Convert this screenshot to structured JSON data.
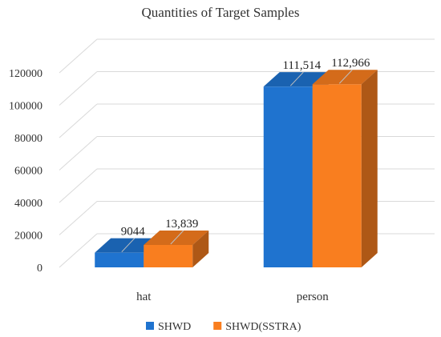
{
  "chart_data": {
    "type": "bar",
    "title": "Quantities of Target Samples",
    "xlabel": "",
    "ylabel": "",
    "categories": [
      "hat",
      "person"
    ],
    "series": [
      {
        "name": "SHWD",
        "values": [
          9044,
          111514
        ],
        "labels": [
          "9044",
          "111,514"
        ],
        "color": "#1F73CF"
      },
      {
        "name": "SHWD(SSTRA)",
        "values": [
          13839,
          112966
        ],
        "labels": [
          "13,839",
          "112,966"
        ],
        "color": "#F97E1F"
      }
    ],
    "ylim": [
      0,
      120000
    ],
    "yticks": [
      "0",
      "20000",
      "40000",
      "60000",
      "80000",
      "100000",
      "120000"
    ],
    "grid": true,
    "legend": "bottom",
    "style": "3d-column"
  }
}
